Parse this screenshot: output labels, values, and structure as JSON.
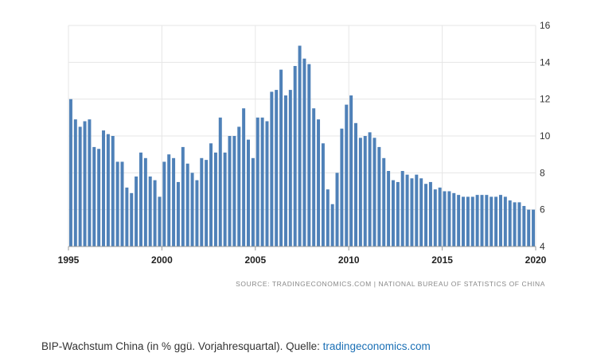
{
  "chart_data": {
    "type": "bar",
    "bar_color": "#4f81b8",
    "grid": true,
    "ylim": [
      4,
      16
    ],
    "yticks": [
      4,
      6,
      8,
      10,
      12,
      14,
      16
    ],
    "xlim": [
      1995,
      2020
    ],
    "xticks": [
      1995,
      2000,
      2005,
      2010,
      2015,
      2020
    ],
    "x_tick_labels": [
      "1995",
      "2000",
      "2005",
      "2010",
      "2015",
      "2020"
    ],
    "values": [
      12.0,
      10.9,
      10.5,
      10.8,
      10.9,
      9.4,
      9.3,
      10.3,
      10.1,
      10.0,
      8.6,
      8.6,
      7.2,
      6.9,
      7.8,
      9.1,
      8.8,
      7.8,
      7.6,
      6.7,
      8.6,
      9.0,
      8.8,
      7.5,
      9.4,
      8.5,
      8.0,
      7.6,
      8.8,
      8.7,
      9.6,
      9.1,
      11.0,
      9.1,
      10.0,
      10.0,
      10.5,
      11.5,
      9.8,
      8.8,
      11.0,
      11.0,
      10.8,
      12.4,
      12.5,
      13.6,
      12.2,
      12.5,
      13.8,
      14.9,
      14.2,
      13.9,
      11.5,
      10.9,
      9.6,
      7.1,
      6.3,
      8.0,
      10.4,
      11.7,
      12.2,
      10.7,
      9.9,
      10.0,
      10.2,
      9.9,
      9.4,
      8.8,
      8.1,
      7.6,
      7.5,
      8.1,
      7.9,
      7.7,
      7.9,
      7.7,
      7.4,
      7.5,
      7.1,
      7.2,
      7.0,
      7.0,
      6.9,
      6.8,
      6.7,
      6.7,
      6.7,
      6.8,
      6.8,
      6.8,
      6.7,
      6.7,
      6.8,
      6.7,
      6.5,
      6.4,
      6.4,
      6.2,
      6.0,
      6.0
    ]
  },
  "source": "SOURCE: TRADINGECONOMICS.COM | NATIONAL BUREAU OF STATISTICS OF CHINA",
  "caption": {
    "text": "BIP-Wachstum China (in % ggü. Vorjahresquartal). Quelle: ",
    "link": "tradingeconomics.com"
  }
}
